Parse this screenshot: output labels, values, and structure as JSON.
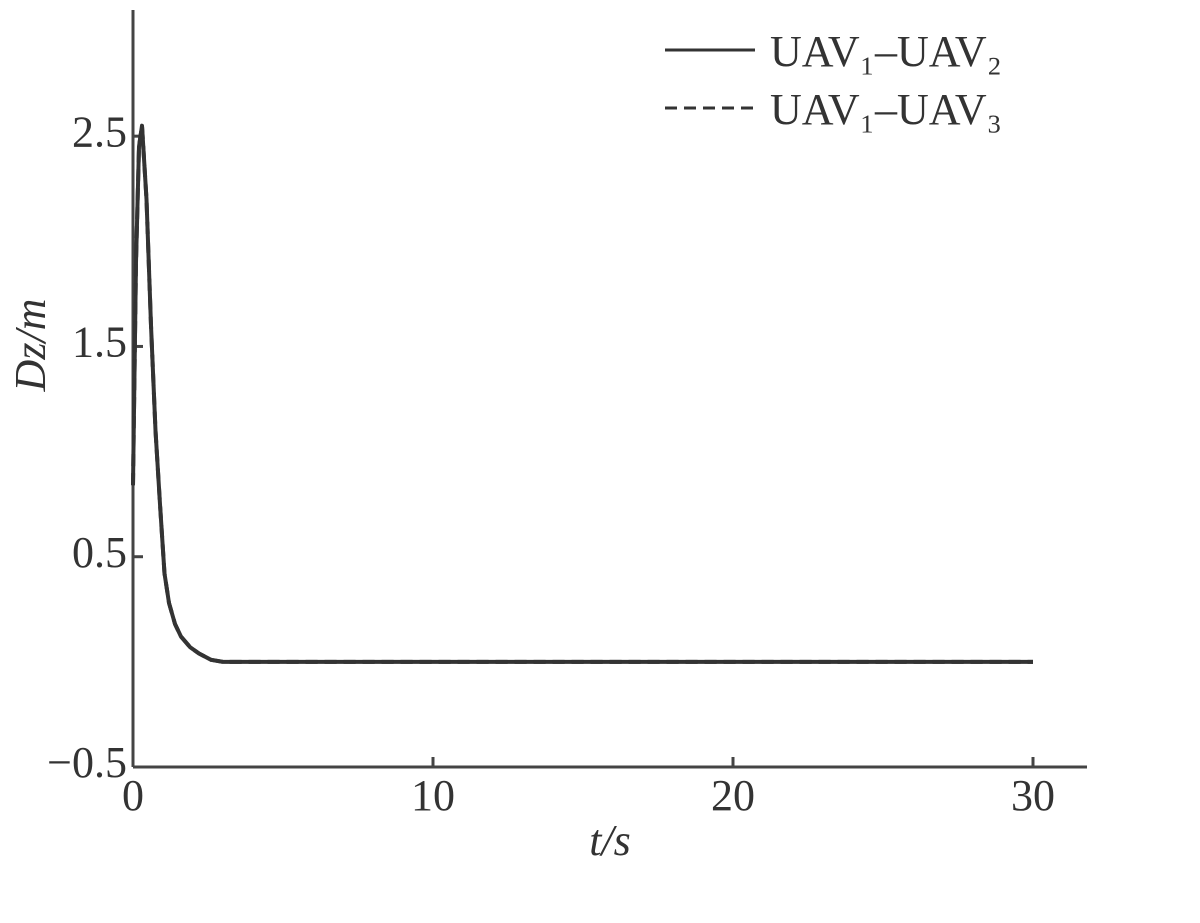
{
  "chart_data": {
    "type": "line",
    "xlabel": "t/s",
    "ylabel": "Dz/m",
    "x": [
      0,
      0.1,
      0.2,
      0.3,
      0.45,
      0.6,
      0.75,
      0.9,
      1.05,
      1.2,
      1.4,
      1.6,
      1.9,
      2.2,
      2.6,
      3,
      10,
      20,
      30
    ],
    "series": [
      {
        "name": "UAV₁–UAV₂",
        "color": "#333333",
        "dash": "solid",
        "values": [
          0.84,
          1.9,
          2.45,
          2.55,
          2.2,
          1.6,
          1.1,
          0.75,
          0.42,
          0.28,
          0.18,
          0.12,
          0.07,
          0.04,
          0.01,
          0,
          0,
          0,
          0
        ]
      },
      {
        "name": "UAV₁–UAV₃",
        "color": "#333333",
        "dash": "dashed",
        "values": [
          0.84,
          1.9,
          2.45,
          2.55,
          2.2,
          1.6,
          1.1,
          0.75,
          0.42,
          0.28,
          0.18,
          0.12,
          0.07,
          0.04,
          0.01,
          0,
          0,
          0,
          0
        ]
      }
    ],
    "xlim": [
      0,
      31.8
    ],
    "ylim": [
      -0.5,
      3.1
    ],
    "xticks": [
      0,
      10,
      20,
      30
    ],
    "yticks": [
      {
        "value": -0.5,
        "label": "−0.5"
      },
      0.5,
      1.5,
      2.5
    ],
    "legend": "upper-right",
    "grid": false
  }
}
